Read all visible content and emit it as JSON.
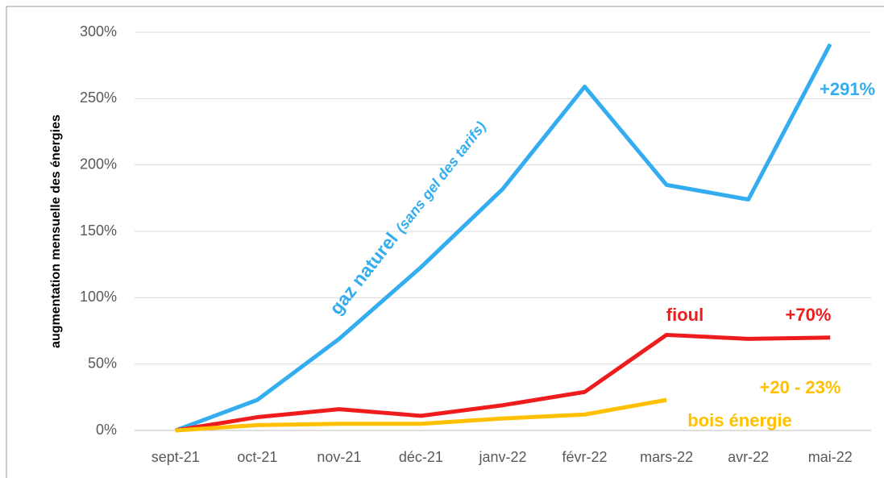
{
  "chart_data": {
    "type": "line",
    "y_axis_label": "augmentation mensuelle des énergies",
    "categories": [
      "sept-21",
      "oct-21",
      "nov-21",
      "déc-21",
      "janv-22",
      "févr-22",
      "mars-22",
      "avr-22",
      "mai-22"
    ],
    "series": [
      {
        "name": "gaz naturel",
        "color": "#33adf0",
        "values": [
          0,
          23,
          69,
          123,
          182,
          259,
          185,
          174,
          291
        ]
      },
      {
        "name": "fioul",
        "color": "#ee1c1c",
        "values": [
          0,
          10,
          16,
          11,
          19,
          29,
          72,
          69,
          70
        ]
      },
      {
        "name": "bois énergie",
        "color": "#ffc000",
        "values": [
          0,
          4,
          5,
          5,
          9,
          12,
          23,
          null,
          null
        ]
      }
    ],
    "annotations": [
      "(sans gel des tarifs)",
      "+291%",
      "+70%",
      "+20 - 23%"
    ],
    "ylim": [
      0,
      300
    ],
    "yticks": [
      {
        "value": 0,
        "label": "0%"
      },
      {
        "value": 50,
        "label": "50%"
      },
      {
        "value": 100,
        "label": "100%"
      },
      {
        "value": 150,
        "label": "150%"
      },
      {
        "value": 200,
        "label": "200%"
      },
      {
        "value": 250,
        "label": "250%"
      },
      {
        "value": 300,
        "label": "300%"
      }
    ],
    "grid": true
  }
}
